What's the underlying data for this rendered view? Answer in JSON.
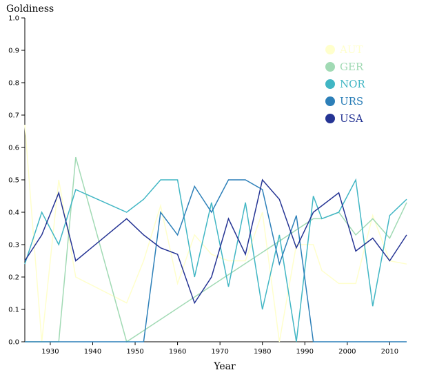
{
  "chart_data": {
    "type": "line",
    "title": "",
    "xlabel": "Year",
    "ylabel": "Goldiness",
    "xlim": [
      1924,
      2014
    ],
    "ylim": [
      0,
      1
    ],
    "x_ticks": [
      1930,
      1940,
      1950,
      1960,
      1970,
      1980,
      1990,
      2000,
      2010
    ],
    "y_ticks": [
      0.0,
      0.1,
      0.2,
      0.3,
      0.4,
      0.5,
      0.6,
      0.7,
      0.8,
      0.9,
      1.0
    ],
    "x_tick_labels": [
      "1930",
      "1940",
      "1950",
      "1960",
      "1970",
      "1980",
      "1990",
      "2000",
      "2010"
    ],
    "y_tick_labels": [
      "0.0",
      "0.1",
      "0.2",
      "0.3",
      "0.4",
      "0.5",
      "0.6",
      "0.7",
      "0.8",
      "0.9",
      "1.0"
    ],
    "legend_position": "top-right",
    "grid": false,
    "series": [
      {
        "name": "AUT",
        "color": "#ffffcc",
        "x": [
          1924,
          1928,
          1932,
          1936,
          1948,
          1952,
          1956,
          1960,
          1964,
          1968,
          1972,
          1976,
          1980,
          1984,
          1988,
          1992,
          1994,
          1998,
          2002,
          2006,
          2010,
          2014
        ],
        "values": [
          0.67,
          0.0,
          0.5,
          0.2,
          0.12,
          0.25,
          0.42,
          0.18,
          0.33,
          0.27,
          0.25,
          0.25,
          0.4,
          0.0,
          0.3,
          0.3,
          0.22,
          0.18,
          0.18,
          0.39,
          0.25,
          0.24
        ]
      },
      {
        "name": "GER",
        "color": "#a1dab4",
        "x": [
          1924,
          1928,
          1932,
          1936,
          1948,
          1992,
          1994,
          1998,
          2002,
          2006,
          2010,
          2014
        ],
        "values": [
          0.0,
          0.0,
          0.0,
          0.57,
          0.0,
          0.38,
          0.38,
          0.4,
          0.33,
          0.38,
          0.32,
          0.43
        ]
      },
      {
        "name": "NOR",
        "color": "#41b6c4",
        "x": [
          1924,
          1928,
          1932,
          1936,
          1948,
          1952,
          1956,
          1960,
          1964,
          1968,
          1972,
          1976,
          1980,
          1984,
          1988,
          1992,
          1994,
          1998,
          2002,
          2006,
          2010,
          2014
        ],
        "values": [
          0.24,
          0.4,
          0.3,
          0.47,
          0.4,
          0.44,
          0.5,
          0.5,
          0.2,
          0.43,
          0.17,
          0.43,
          0.1,
          0.33,
          0.0,
          0.45,
          0.38,
          0.4,
          0.5,
          0.11,
          0.39,
          0.44
        ]
      },
      {
        "name": "URS",
        "color": "#2c7fb8",
        "x": [
          1924,
          1928,
          1932,
          1936,
          1948,
          1952,
          1956,
          1960,
          1964,
          1968,
          1972,
          1976,
          1980,
          1984,
          1988,
          1992,
          1994,
          1998,
          2002,
          2006,
          2010,
          2014
        ],
        "values": [
          0.0,
          0.0,
          0.0,
          0.0,
          0.0,
          0.0,
          0.4,
          0.33,
          0.48,
          0.4,
          0.5,
          0.5,
          0.47,
          0.24,
          0.39,
          0.0,
          0.0,
          0.0,
          0.0,
          0.0,
          0.0,
          0.0
        ]
      },
      {
        "name": "USA",
        "color": "#253494",
        "x": [
          1924,
          1928,
          1932,
          1936,
          1948,
          1952,
          1956,
          1960,
          1964,
          1968,
          1972,
          1976,
          1980,
          1984,
          1988,
          1992,
          1994,
          1998,
          2002,
          2006,
          2010,
          2014
        ],
        "values": [
          0.25,
          0.33,
          0.46,
          0.25,
          0.38,
          0.33,
          0.29,
          0.27,
          0.12,
          0.2,
          0.38,
          0.27,
          0.5,
          0.44,
          0.29,
          0.4,
          0.42,
          0.46,
          0.28,
          0.32,
          0.25,
          0.33
        ]
      }
    ]
  }
}
